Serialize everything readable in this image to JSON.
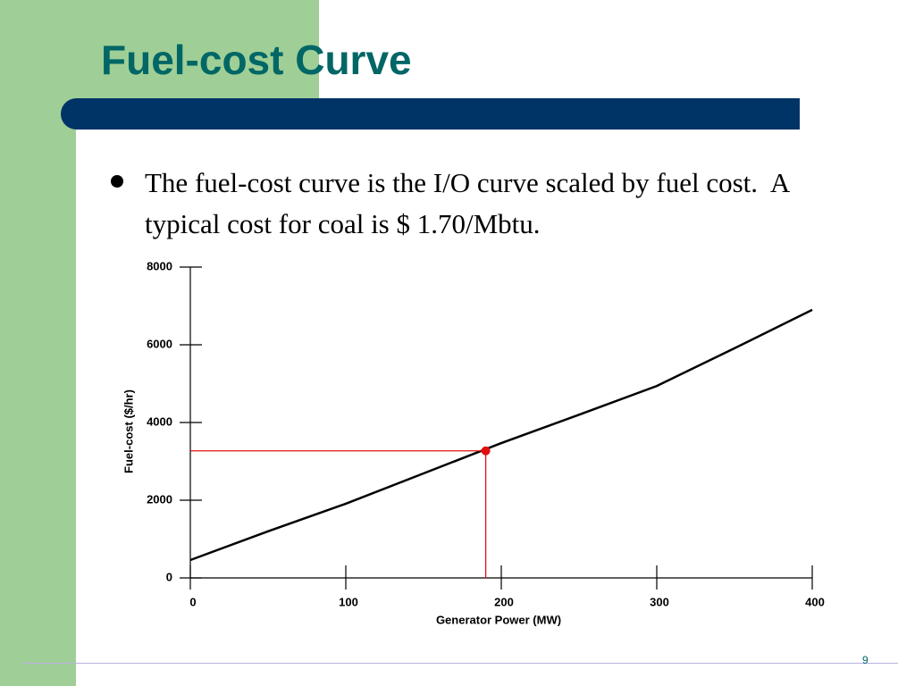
{
  "title": "Fuel-cost Curve",
  "bullet": "The fuel-cost curve is the I/O curve scaled by fuel cost.  A typical cost for coal is $ 1.70/Mbtu.",
  "page_number": "9",
  "chart_data": {
    "type": "line",
    "xlabel": "Generator Power (MW)",
    "ylabel": "Fuel-cost ($/hr)",
    "xlim": [
      0,
      400
    ],
    "xticks": [
      0,
      100,
      200,
      300,
      400
    ],
    "ylim": [
      0,
      8000
    ],
    "yticks": [
      0,
      2000,
      4000,
      6000,
      8000
    ],
    "series": [
      {
        "color": "#000000",
        "x": [
          0,
          50,
          100,
          150,
          200,
          250,
          300,
          350,
          400
        ],
        "values": [
          460,
          1200,
          1910,
          2690,
          3470,
          4200,
          4940,
          5910,
          6900
        ]
      },
      {
        "color": "#e01010",
        "x": [
          190
        ],
        "values": [
          3270
        ]
      }
    ]
  }
}
